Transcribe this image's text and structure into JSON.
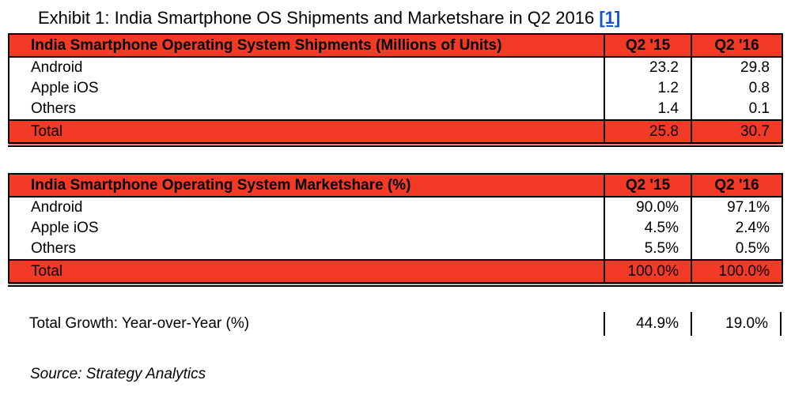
{
  "colors": {
    "accent_red": "#F23A27",
    "link_blue": "#1155CC",
    "border_black": "#000000"
  },
  "title": {
    "text": "Exhibit 1: India Smartphone OS Shipments and Marketshare in Q2 2016",
    "ref": "[1]"
  },
  "shipments": {
    "header": "India Smartphone Operating System Shipments (Millions of Units)",
    "columns": [
      "Q2 '15",
      "Q2 '16"
    ],
    "rows": [
      {
        "label": "Android",
        "values": [
          "23.2",
          "29.8"
        ]
      },
      {
        "label": "Apple iOS",
        "values": [
          "1.2",
          "0.8"
        ]
      },
      {
        "label": "Others",
        "values": [
          "1.4",
          "0.1"
        ]
      }
    ],
    "total": {
      "label": "Total",
      "values": [
        "25.8",
        "30.7"
      ]
    }
  },
  "marketshare": {
    "header": "India Smartphone Operating System Marketshare (%)",
    "columns": [
      "Q2 '15",
      "Q2 '16"
    ],
    "rows": [
      {
        "label": "Android",
        "values": [
          "90.0%",
          "97.1%"
        ]
      },
      {
        "label": "Apple iOS",
        "values": [
          "4.5%",
          "2.4%"
        ]
      },
      {
        "label": "Others",
        "values": [
          "5.5%",
          "0.5%"
        ]
      }
    ],
    "total": {
      "label": "Total",
      "values": [
        "100.0%",
        "100.0%"
      ]
    }
  },
  "growth": {
    "label": "Total Growth: Year-over-Year (%)",
    "values": [
      "44.9%",
      "19.0%"
    ]
  },
  "source": "Source: Strategy Analytics"
}
